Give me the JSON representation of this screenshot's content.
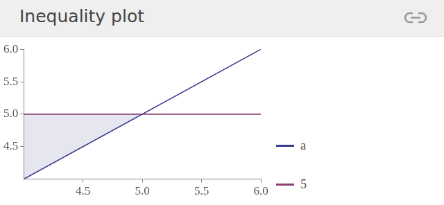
{
  "chart_data": {
    "type": "line",
    "title": "Inequality plot",
    "x": [
      4,
      6
    ],
    "series": [
      {
        "name": "a",
        "color": "#3e3d8e",
        "values": [
          4,
          6
        ]
      },
      {
        "name": "5",
        "color": "#8c3f72",
        "values": [
          5,
          5
        ]
      }
    ],
    "xlim": [
      4,
      6
    ],
    "xticks": [
      4.5,
      {
        "value": 5,
        "label": "5.0"
      },
      5.5,
      {
        "value": 6,
        "label": "6.0"
      }
    ],
    "ylim": [
      4,
      6
    ],
    "yticks": [
      4.5,
      {
        "value": 5,
        "label": "5.0"
      },
      5.5,
      {
        "value": 6,
        "label": "6.0"
      }
    ],
    "grid": false,
    "legend": "right"
  }
}
